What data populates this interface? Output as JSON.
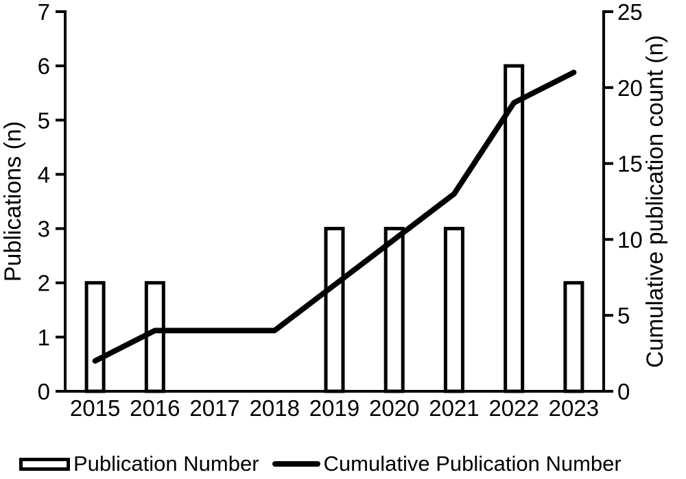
{
  "chart_data": {
    "type": "bar",
    "subtype": "bar-line-combo",
    "categories": [
      "2015",
      "2016",
      "2017",
      "2018",
      "2019",
      "2020",
      "2021",
      "2022",
      "2023"
    ],
    "series": [
      {
        "name": "Publication Number",
        "type": "bar",
        "axis": "left",
        "values": [
          2,
          2,
          0,
          0,
          3,
          3,
          3,
          6,
          2
        ]
      },
      {
        "name": "Cumulative Publication Number",
        "type": "line",
        "axis": "right",
        "values": [
          2,
          4,
          4,
          4,
          7,
          10,
          13,
          19,
          21
        ]
      }
    ],
    "left_axis": {
      "label": "Publications (n)",
      "min": 0,
      "max": 7,
      "ticks": [
        0,
        1,
        2,
        3,
        4,
        5,
        6,
        7
      ]
    },
    "right_axis": {
      "label": "Cumulative publication count (n)",
      "min": 0,
      "max": 25,
      "ticks": [
        0,
        5,
        10,
        15,
        20,
        25
      ]
    },
    "x_axis": {
      "tick_marks_visible": false
    },
    "grid": false,
    "legend_position": "bottom",
    "title": ""
  },
  "legend": {
    "items": [
      {
        "label": "Publication Number",
        "swatch": "bar-outline"
      },
      {
        "label": "Cumulative Publication Number",
        "swatch": "thick-line"
      }
    ]
  },
  "colors": {
    "background": "#ffffff",
    "text": "#000000",
    "axis": "#000000",
    "bar_fill": "#ffffff",
    "bar_stroke": "#000000",
    "line": "#000000"
  }
}
